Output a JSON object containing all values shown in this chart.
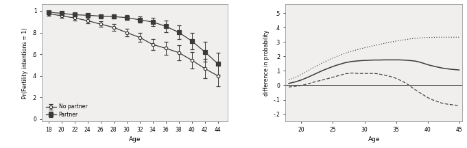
{
  "left": {
    "ages": [
      18,
      20,
      22,
      24,
      26,
      28,
      30,
      32,
      34,
      36,
      38,
      40,
      42,
      44
    ],
    "no_partner": [
      0.975,
      0.955,
      0.935,
      0.91,
      0.878,
      0.848,
      0.8,
      0.755,
      0.69,
      0.655,
      0.615,
      0.545,
      0.468,
      0.4
    ],
    "no_partner_err": [
      0.018,
      0.02,
      0.022,
      0.024,
      0.026,
      0.03,
      0.035,
      0.04,
      0.048,
      0.058,
      0.068,
      0.078,
      0.088,
      0.098
    ],
    "partner": [
      0.988,
      0.978,
      0.965,
      0.96,
      0.952,
      0.948,
      0.938,
      0.918,
      0.898,
      0.858,
      0.802,
      0.722,
      0.622,
      0.512
    ],
    "partner_err": [
      0.01,
      0.012,
      0.015,
      0.016,
      0.018,
      0.02,
      0.023,
      0.028,
      0.038,
      0.052,
      0.062,
      0.076,
      0.09,
      0.1
    ],
    "ylabel": "Pr(Fertility intentions = 1)",
    "xlabel": "Age",
    "yticks": [
      0.0,
      0.2,
      0.4,
      0.6,
      0.8,
      1.0
    ],
    "ytick_labels": [
      "0",
      ".2",
      ".4",
      ".6",
      ".8",
      "1"
    ],
    "xticks": [
      18,
      20,
      22,
      24,
      26,
      28,
      30,
      32,
      34,
      36,
      38,
      40,
      42,
      44
    ],
    "ylim": [
      -0.02,
      1.06
    ],
    "xlim": [
      17.0,
      45.5
    ]
  },
  "right": {
    "ages_fine": [
      18,
      18.5,
      19,
      19.5,
      20,
      20.5,
      21,
      21.5,
      22,
      22.5,
      23,
      23.5,
      24,
      24.5,
      25,
      25.5,
      26,
      26.5,
      27,
      27.5,
      28,
      28.5,
      29,
      29.5,
      30,
      30.5,
      31,
      31.5,
      32,
      32.5,
      33,
      33.5,
      34,
      34.5,
      35,
      35.5,
      36,
      36.5,
      37,
      37.5,
      38,
      38.5,
      39,
      39.5,
      40,
      40.5,
      41,
      41.5,
      42,
      42.5,
      43,
      43.5,
      44,
      44.5,
      45
    ],
    "mean_diff": [
      0.013,
      0.018,
      0.023,
      0.03,
      0.037,
      0.046,
      0.055,
      0.065,
      0.075,
      0.085,
      0.095,
      0.105,
      0.113,
      0.122,
      0.13,
      0.138,
      0.144,
      0.151,
      0.157,
      0.161,
      0.165,
      0.167,
      0.169,
      0.171,
      0.172,
      0.173,
      0.174,
      0.175,
      0.175,
      0.175,
      0.176,
      0.176,
      0.176,
      0.176,
      0.176,
      0.176,
      0.175,
      0.174,
      0.172,
      0.17,
      0.168,
      0.163,
      0.157,
      0.15,
      0.143,
      0.137,
      0.132,
      0.127,
      0.122,
      0.118,
      0.115,
      0.112,
      0.11,
      0.108,
      0.106
    ],
    "upper_ci": [
      0.038,
      0.046,
      0.054,
      0.064,
      0.075,
      0.088,
      0.101,
      0.113,
      0.124,
      0.136,
      0.148,
      0.159,
      0.169,
      0.18,
      0.189,
      0.198,
      0.207,
      0.215,
      0.222,
      0.23,
      0.237,
      0.242,
      0.248,
      0.254,
      0.26,
      0.265,
      0.27,
      0.275,
      0.279,
      0.284,
      0.289,
      0.294,
      0.298,
      0.302,
      0.306,
      0.31,
      0.313,
      0.316,
      0.32,
      0.323,
      0.325,
      0.327,
      0.329,
      0.33,
      0.331,
      0.332,
      0.332,
      0.333,
      0.333,
      0.333,
      0.333,
      0.333,
      0.333,
      0.333,
      0.333
    ],
    "lower_ci": [
      -0.012,
      -0.01,
      -0.008,
      -0.004,
      0.0,
      0.004,
      0.009,
      0.016,
      0.022,
      0.028,
      0.033,
      0.038,
      0.044,
      0.05,
      0.056,
      0.062,
      0.068,
      0.074,
      0.08,
      0.082,
      0.085,
      0.083,
      0.082,
      0.082,
      0.082,
      0.082,
      0.082,
      0.082,
      0.08,
      0.076,
      0.072,
      0.067,
      0.062,
      0.056,
      0.048,
      0.038,
      0.027,
      0.016,
      0.002,
      -0.014,
      -0.03,
      -0.045,
      -0.058,
      -0.072,
      -0.085,
      -0.095,
      -0.105,
      -0.112,
      -0.12,
      -0.126,
      -0.13,
      -0.133,
      -0.136,
      -0.138,
      -0.14
    ],
    "ylabel": "difference in probability",
    "xlabel": "Age",
    "yticks": [
      -0.2,
      -0.1,
      0.0,
      0.1,
      0.2,
      0.3,
      0.4,
      0.5
    ],
    "ytick_labels": [
      "-.2",
      "-.1",
      "0",
      ".1",
      ".2",
      ".3",
      ".4",
      ".5"
    ],
    "xticks": [
      20,
      25,
      30,
      35,
      40,
      45
    ],
    "ylim": [
      -0.25,
      0.56
    ],
    "xlim": [
      17.5,
      45.5
    ]
  },
  "left_legend": {
    "no_partner_label": "No partner",
    "partner_label": "Partner"
  },
  "line_color": "#3a3a3a",
  "bg_color": "#f0efee"
}
